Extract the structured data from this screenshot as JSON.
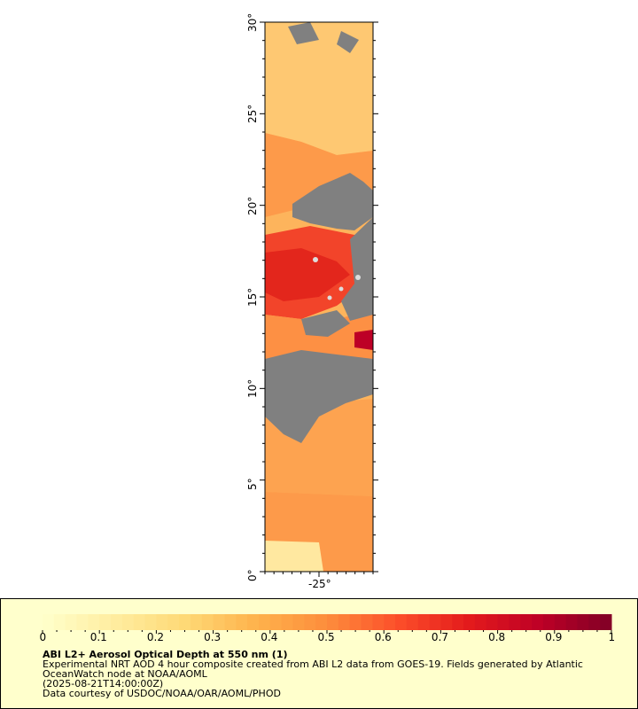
{
  "map": {
    "y_ticks": [
      "0°",
      "5°",
      "10°",
      "15°",
      "20°",
      "25°",
      "30°"
    ],
    "x_ticks": [
      "-25°"
    ],
    "lat_range": [
      0,
      30
    ],
    "lon_center_label": "-25°",
    "land_color": "#808080",
    "ocean_color": "#ffffff"
  },
  "colorbar": {
    "ticks": [
      "0",
      "0.1",
      "0.2",
      "0.3",
      "0.4",
      "0.5",
      "0.6",
      "0.7",
      "0.8",
      "0.9",
      "1"
    ],
    "range": [
      0,
      1
    ],
    "colors": [
      "#ffffcc",
      "#ffeda0",
      "#fed976",
      "#feb24c",
      "#fd8d3c",
      "#fc4e2a",
      "#e31a1c",
      "#bd0026",
      "#800026"
    ]
  },
  "caption": {
    "title": "ABI L2+ Aerosol Optical Depth at 550 nm (1)",
    "line1": "Experimental NRT AOD 4 hour composite created from ABI L2 data from GOES-19. Fields generated by Atlantic",
    "line2": "OceanWatch node at NOAA/AOML",
    "line3": "(2025-08-21T14:00:00Z)",
    "line4": "Data courtesy of USDOC/NOAA/OAR/AOML/PHOD"
  },
  "legend_background": "#ffffcc"
}
